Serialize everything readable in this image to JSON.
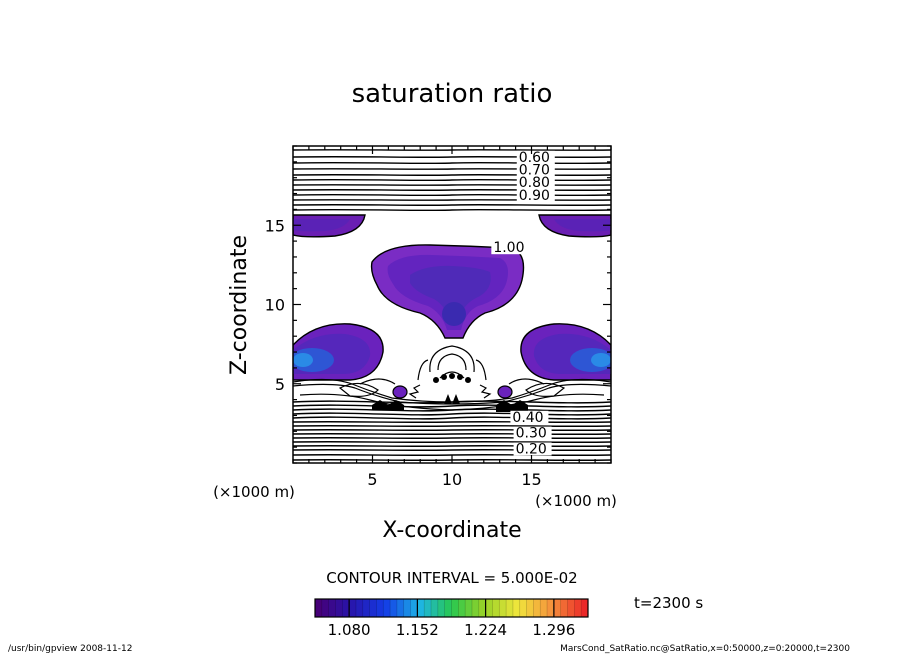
{
  "chart_data": {
    "type": "contour",
    "title": "saturation ratio",
    "xlabel": "X-coordinate",
    "ylabel": "Z-coordinate",
    "x_unit_label": "(×1000 m)",
    "z_unit_label": "(×1000 m)",
    "xlim": [
      0,
      20
    ],
    "ylim": [
      0,
      20
    ],
    "x_ticks": [
      5,
      10,
      15
    ],
    "y_ticks": [
      5,
      10,
      15
    ],
    "contour_labels": [
      {
        "text": "0.60",
        "x": 14.2,
        "z": 19.0
      },
      {
        "text": "0.70",
        "x": 14.2,
        "z": 18.2
      },
      {
        "text": "0.80",
        "x": 14.2,
        "z": 17.4
      },
      {
        "text": "0.90",
        "x": 14.2,
        "z": 16.6
      },
      {
        "text": "1.00",
        "x": 12.6,
        "z": 13.3
      },
      {
        "text": "0.40",
        "x": 13.8,
        "z": 2.6
      },
      {
        "text": "0.30",
        "x": 14.0,
        "z": 1.6
      },
      {
        "text": "0.20",
        "x": 14.0,
        "z": 0.6
      }
    ],
    "contour_interval_text": "CONTOUR INTERVAL = 5.000E-02",
    "colorbar": {
      "tick_labels": [
        "1.080",
        "1.152",
        "1.224",
        "1.296"
      ],
      "ticks": [
        1.08,
        1.152,
        1.224,
        1.296
      ],
      "range": [
        1.044,
        1.332
      ]
    },
    "time_label": "t=2300 s",
    "footer_left": "/usr/bin/gpview   2008-11-12",
    "footer_right": "MarsCond_SatRatio.nc@SatRatio,x=0:50000,z=0:20000,t=2300"
  }
}
